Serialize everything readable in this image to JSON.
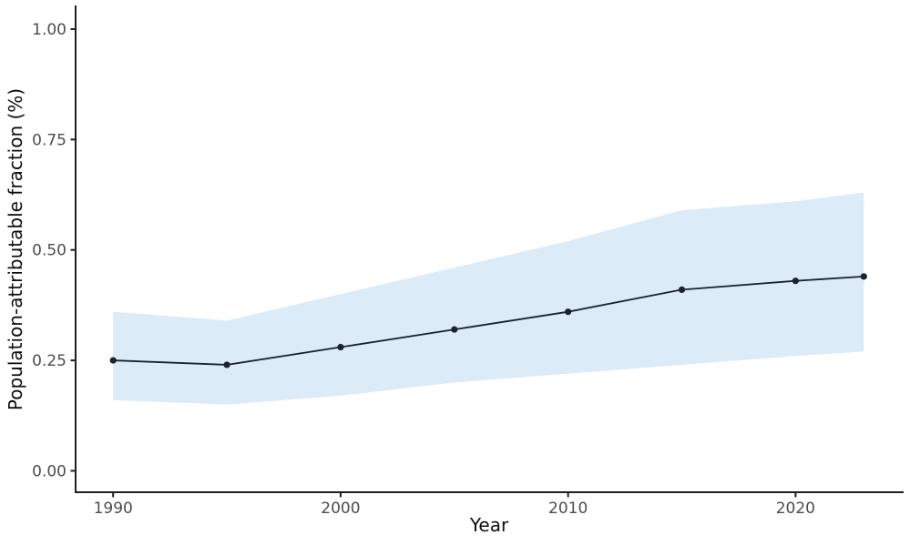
{
  "chart_data": {
    "type": "line",
    "title": "",
    "xlabel": "Year",
    "ylabel": "Population-attributable fraction (%)",
    "x": [
      1990,
      1995,
      2000,
      2005,
      2010,
      2015,
      2020,
      2023
    ],
    "series": [
      {
        "name": "population-attributable-fraction",
        "values": [
          0.25,
          0.24,
          0.28,
          0.32,
          0.36,
          0.41,
          0.43,
          0.44
        ]
      }
    ],
    "band": {
      "name": "confidence-interval",
      "lower": [
        0.16,
        0.15,
        0.17,
        0.2,
        0.22,
        0.24,
        0.26,
        0.27
      ],
      "upper": [
        0.36,
        0.34,
        0.4,
        0.46,
        0.52,
        0.59,
        0.61,
        0.63
      ]
    },
    "x_ticks": {
      "values": [
        1990,
        2000,
        2010,
        2020
      ],
      "labels": [
        "1990",
        "2000",
        "2010",
        "2020"
      ]
    },
    "y_ticks": {
      "values": [
        0,
        0.25,
        0.5,
        0.75,
        1.0
      ],
      "labels": [
        "0.00",
        "0.25",
        "0.50",
        "0.75",
        "1.00"
      ]
    },
    "xlim": [
      1988.4,
      2024.8
    ],
    "ylim": [
      0,
      1.0
    ],
    "grid": false,
    "legend": "none",
    "points": true,
    "colors": {
      "line": "#1a2330",
      "point": "#1a2330",
      "band": "#dcebf8",
      "axis": "#1f1f1f",
      "tick_label": "#4d4d4d",
      "axis_title": "#0e0e0e",
      "background": "#ffffff"
    }
  }
}
